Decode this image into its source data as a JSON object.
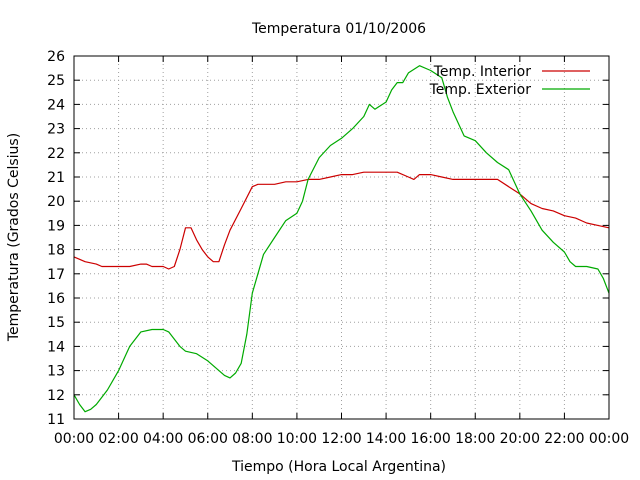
{
  "chart_data": {
    "type": "line",
    "title": "Temperatura 01/10/2006",
    "xlabel": "Tiempo (Hora Local Argentina)",
    "ylabel": "Temperatura (Grados Celsius)",
    "xlim": [
      0,
      24
    ],
    "ylim": [
      11,
      26
    ],
    "x_tick_labels": [
      "00:00",
      "02:00",
      "04:00",
      "06:00",
      "08:00",
      "10:00",
      "12:00",
      "14:00",
      "16:00",
      "18:00",
      "20:00",
      "22:00",
      "00:00"
    ],
    "y_tick_labels": [
      "11",
      "12",
      "13",
      "14",
      "15",
      "16",
      "17",
      "18",
      "19",
      "20",
      "21",
      "22",
      "23",
      "24",
      "25",
      "26"
    ],
    "grid": true,
    "legend_position": "top-right",
    "series": [
      {
        "name": "Temp. Interior",
        "color": "#cc0000",
        "x": [
          0,
          0.25,
          0.5,
          1,
          1.25,
          2,
          2.5,
          3,
          3.25,
          3.5,
          4,
          4.25,
          4.5,
          4.75,
          5,
          5.25,
          5.5,
          5.75,
          6,
          6.25,
          6.5,
          6.75,
          7,
          7.5,
          8,
          8.25,
          8.5,
          9,
          9.5,
          10,
          10.5,
          11,
          11.5,
          12,
          12.5,
          13,
          13.5,
          14,
          14.5,
          15,
          15.25,
          15.5,
          16,
          16.5,
          17,
          17.5,
          18,
          18.5,
          19,
          19.5,
          20,
          20.5,
          21,
          21.5,
          22,
          22.5,
          23,
          23.5,
          24
        ],
        "y": [
          17.7,
          17.6,
          17.5,
          17.4,
          17.3,
          17.3,
          17.3,
          17.4,
          17.4,
          17.3,
          17.3,
          17.2,
          17.3,
          18.0,
          18.9,
          18.9,
          18.4,
          18.0,
          17.7,
          17.5,
          17.5,
          18.2,
          18.8,
          19.7,
          20.6,
          20.7,
          20.7,
          20.7,
          20.8,
          20.8,
          20.9,
          20.9,
          21.0,
          21.1,
          21.1,
          21.2,
          21.2,
          21.2,
          21.2,
          21.0,
          20.9,
          21.1,
          21.1,
          21.0,
          20.9,
          20.9,
          20.9,
          20.9,
          20.9,
          20.6,
          20.3,
          19.9,
          19.7,
          19.6,
          19.4,
          19.3,
          19.1,
          19.0,
          18.9
        ]
      },
      {
        "name": "Temp. Exterior",
        "color": "#00aa00",
        "x": [
          0,
          0.25,
          0.5,
          0.75,
          1,
          1.5,
          2,
          2.5,
          3,
          3.5,
          4,
          4.25,
          4.5,
          4.75,
          5,
          5.5,
          6,
          6.5,
          6.75,
          7,
          7.25,
          7.5,
          7.75,
          8,
          8.5,
          9,
          9.5,
          10,
          10.25,
          10.5,
          11,
          11.5,
          12,
          12.5,
          13,
          13.25,
          13.5,
          14,
          14.25,
          14.5,
          14.75,
          15,
          15.5,
          16,
          16.5,
          16.75,
          17,
          17.5,
          18,
          18.5,
          19,
          19.5,
          20,
          20.5,
          21,
          21.5,
          22,
          22.25,
          22.5,
          23,
          23.5,
          23.75,
          24
        ],
        "y": [
          12.0,
          11.6,
          11.3,
          11.4,
          11.6,
          12.2,
          13.0,
          14.0,
          14.6,
          14.7,
          14.7,
          14.6,
          14.3,
          14.0,
          13.8,
          13.7,
          13.4,
          13.0,
          12.8,
          12.7,
          12.9,
          13.3,
          14.5,
          16.2,
          17.8,
          18.5,
          19.2,
          19.5,
          20.0,
          20.9,
          21.8,
          22.3,
          22.6,
          23.0,
          23.5,
          24.0,
          23.8,
          24.1,
          24.6,
          24.9,
          24.9,
          25.3,
          25.6,
          25.4,
          25.1,
          24.3,
          23.7,
          22.7,
          22.5,
          22.0,
          21.6,
          21.3,
          20.3,
          19.6,
          18.8,
          18.3,
          17.9,
          17.5,
          17.3,
          17.3,
          17.2,
          16.8,
          16.2
        ]
      }
    ]
  }
}
